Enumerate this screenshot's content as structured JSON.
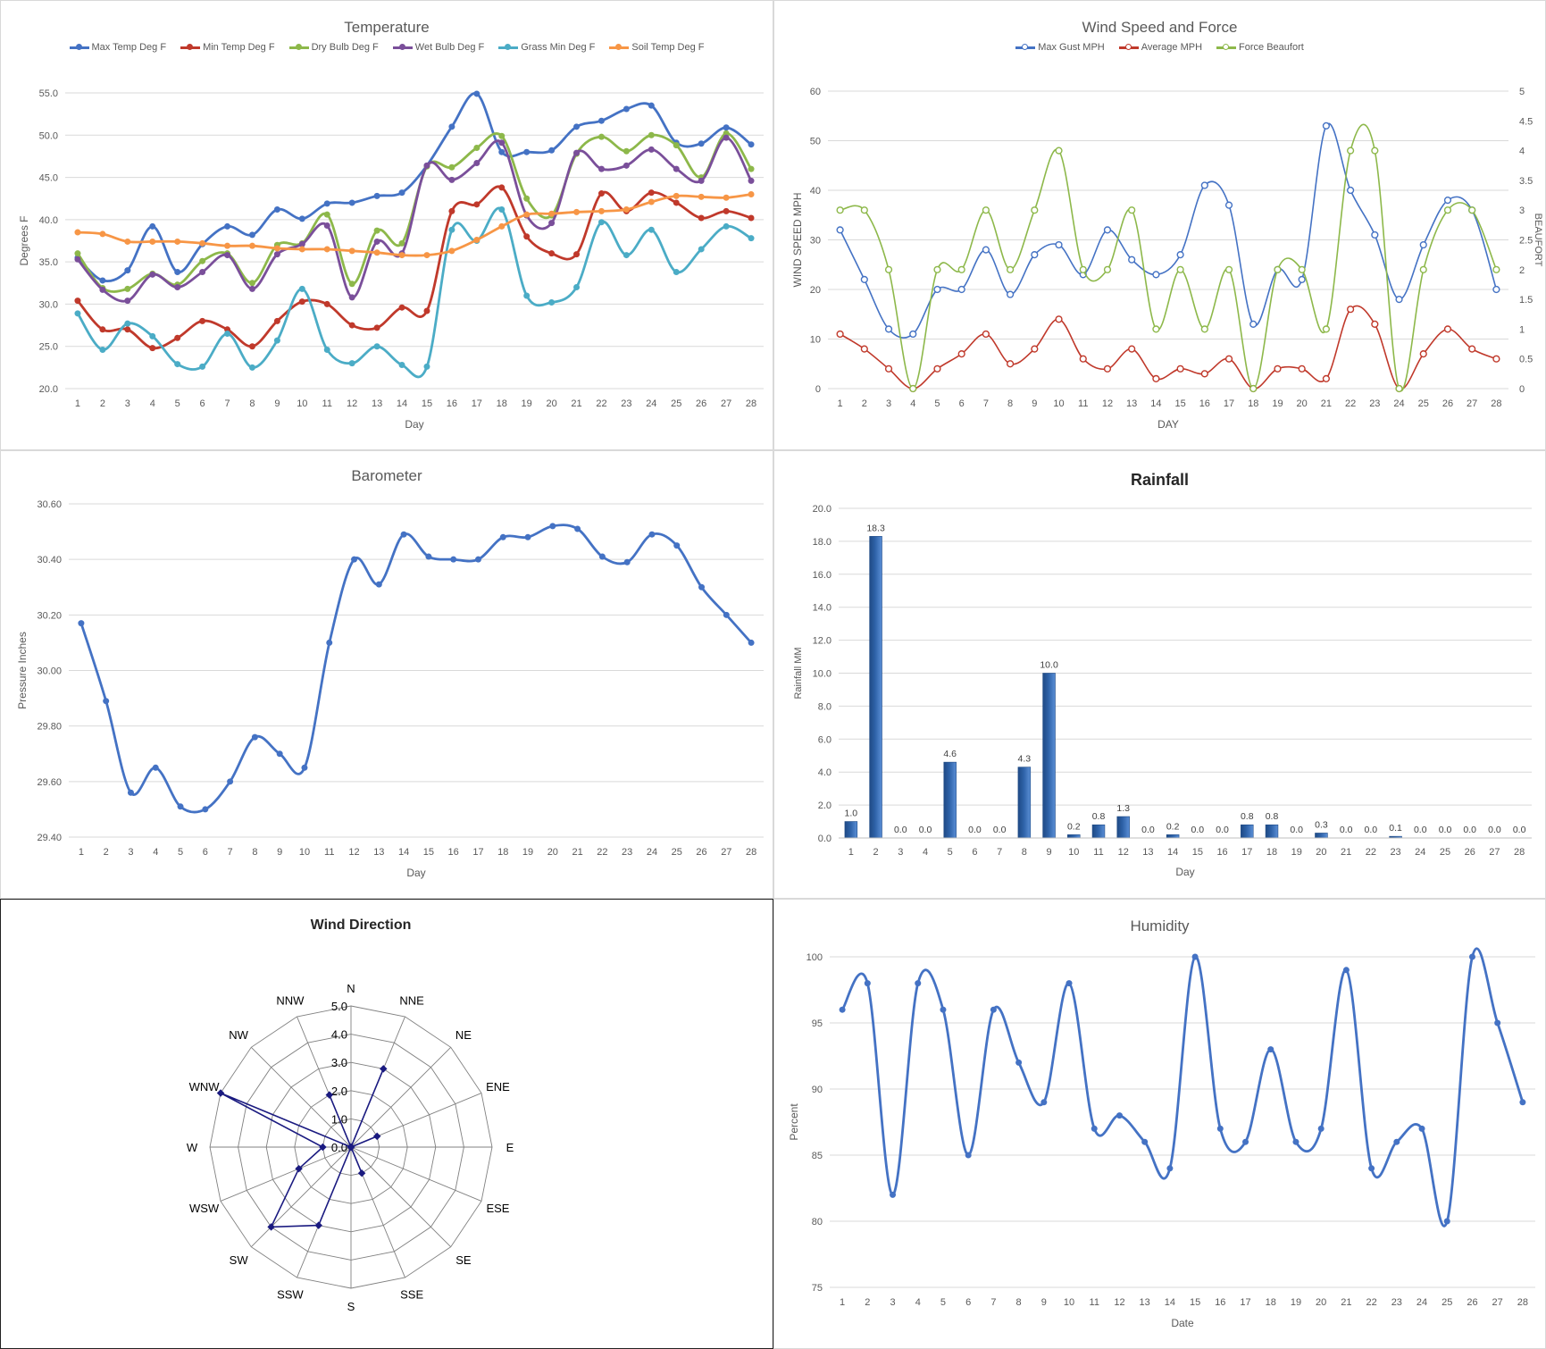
{
  "panels": {
    "temperature": {
      "title": "Temperature"
    },
    "wind": {
      "title": "Wind Speed and Force"
    },
    "barometer": {
      "title": "Barometer"
    },
    "rainfall": {
      "title": "Rainfall"
    },
    "direction": {
      "title": "Wind Direction"
    },
    "humidity": {
      "title": "Humidity"
    }
  },
  "chart_data": [
    {
      "id": "temperature",
      "type": "line",
      "title": "Temperature",
      "xlabel": "Day",
      "ylabel": "Degrees F",
      "ylim": [
        20,
        55
      ],
      "yticks": [
        "20.0",
        "25.0",
        "30.0",
        "35.0",
        "40.0",
        "45.0",
        "50.0",
        "55.0"
      ],
      "x": [
        1,
        2,
        3,
        4,
        5,
        6,
        7,
        8,
        9,
        10,
        11,
        12,
        13,
        14,
        15,
        16,
        17,
        18,
        19,
        20,
        21,
        22,
        23,
        24,
        25,
        26,
        27,
        28
      ],
      "legend_position": "top",
      "grid": true,
      "series": [
        {
          "name": "Max Temp Deg F",
          "color": "#4472c4",
          "values": [
            35.5,
            32.8,
            34,
            39.2,
            33.8,
            37.1,
            39.2,
            38.2,
            41.2,
            40.1,
            41.9,
            42,
            42.8,
            43.2,
            46.4,
            51,
            54.9,
            48,
            48,
            48.2,
            51,
            51.7,
            53.1,
            53.5,
            49.1,
            49,
            50.9,
            48.9
          ]
        },
        {
          "name": "Min Temp Deg F",
          "color": "#c0392b",
          "values": [
            30.4,
            27,
            27,
            24.8,
            26,
            28,
            27,
            25,
            28,
            30.3,
            30,
            27.5,
            27.2,
            29.6,
            29.2,
            41,
            41.8,
            43.8,
            38,
            36,
            35.9,
            43.1,
            41,
            43.2,
            42,
            40.2,
            41,
            40.2
          ]
        },
        {
          "name": "Dry Bulb Deg F",
          "color": "#8db84a",
          "values": [
            36,
            31.9,
            31.8,
            33.6,
            32.3,
            35.1,
            36,
            32.5,
            37,
            37.2,
            40.6,
            32.4,
            38.7,
            37.2,
            46.3,
            46.2,
            48.5,
            49.9,
            42.5,
            40.5,
            47.8,
            49.8,
            48.1,
            50,
            48.8,
            45,
            50.2,
            46
          ]
        },
        {
          "name": "Wet Bulb Deg F",
          "color": "#7a4f9a",
          "values": [
            35.3,
            31.7,
            30.4,
            33.5,
            32,
            33.8,
            35.8,
            31.8,
            35.9,
            37.1,
            39.3,
            30.8,
            37.4,
            36,
            46.4,
            44.7,
            46.7,
            49.1,
            40.5,
            39.6,
            47.9,
            46,
            46.4,
            48.3,
            46,
            44.6,
            49.7,
            44.6
          ]
        },
        {
          "name": "Grass Min Deg F",
          "color": "#4bacc6",
          "values": [
            28.9,
            24.6,
            27.7,
            26.2,
            22.9,
            22.6,
            26.5,
            22.5,
            25.7,
            31.8,
            24.6,
            23,
            25,
            22.8,
            22.6,
            38.8,
            37.5,
            41.2,
            31,
            30.2,
            32,
            39.7,
            35.8,
            38.8,
            33.8,
            36.5,
            39.2,
            37.8
          ]
        },
        {
          "name": "Soil Temp Deg F",
          "color": "#f79646",
          "values": [
            38.5,
            38.3,
            37.4,
            37.4,
            37.4,
            37.2,
            36.9,
            36.9,
            36.6,
            36.5,
            36.5,
            36.3,
            36.1,
            35.8,
            35.8,
            36.3,
            37.6,
            39.2,
            40.6,
            40.7,
            40.9,
            41,
            41.2,
            42.1,
            42.8,
            42.7,
            42.6,
            43
          ]
        }
      ]
    },
    {
      "id": "wind",
      "type": "line",
      "title": "Wind Speed and Force",
      "xlabel": "DAY",
      "ylabel": "WIND SPEED MPH",
      "y2label": "BEAUFORT",
      "ylim": [
        0,
        60
      ],
      "y2lim": [
        0,
        5
      ],
      "yticks": [
        "0",
        "10",
        "20",
        "30",
        "40",
        "50",
        "60"
      ],
      "y2ticks": [
        "0",
        "0.5",
        "1",
        "1.5",
        "2",
        "2.5",
        "3",
        "3.5",
        "4",
        "4.5",
        "5"
      ],
      "x": [
        1,
        2,
        3,
        4,
        5,
        6,
        7,
        8,
        9,
        10,
        11,
        12,
        13,
        14,
        15,
        16,
        17,
        18,
        19,
        20,
        21,
        22,
        23,
        24,
        25,
        26,
        27,
        28
      ],
      "legend_position": "top",
      "grid": true,
      "series": [
        {
          "name": "Max Gust MPH",
          "color": "#4472c4",
          "axis": "left",
          "values": [
            32,
            22,
            12,
            11,
            20,
            20,
            28,
            19,
            27,
            29,
            23,
            32,
            26,
            23,
            27,
            41,
            37,
            13,
            24,
            22,
            53,
            40,
            31,
            18,
            29,
            38,
            36,
            20
          ]
        },
        {
          "name": "Average MPH",
          "color": "#c0392b",
          "axis": "left",
          "values": [
            11,
            8,
            4,
            0,
            4,
            7,
            11,
            5,
            8,
            14,
            6,
            4,
            8,
            2,
            4,
            3,
            6,
            0,
            4,
            4,
            2,
            16,
            13,
            0,
            7,
            12,
            8,
            6
          ]
        },
        {
          "name": "Force Beaufort",
          "color": "#8db84a",
          "axis": "right",
          "values": [
            3,
            3,
            2,
            0,
            2,
            2,
            3,
            2,
            3,
            4,
            2,
            2,
            3,
            1,
            2,
            1,
            2,
            0,
            2,
            2,
            1,
            4,
            4,
            0,
            2,
            3,
            3,
            2
          ]
        }
      ]
    },
    {
      "id": "barometer",
      "type": "line",
      "title": "Barometer",
      "xlabel": "Day",
      "ylabel": "Pressure Inches",
      "ylim": [
        29.4,
        30.6
      ],
      "yticks": [
        "29.40",
        "29.60",
        "29.80",
        "30.00",
        "30.20",
        "30.40",
        "30.60"
      ],
      "x": [
        1,
        2,
        3,
        4,
        5,
        6,
        7,
        8,
        9,
        10,
        11,
        12,
        13,
        14,
        15,
        16,
        17,
        18,
        19,
        20,
        21,
        22,
        23,
        24,
        25,
        26,
        27,
        28
      ],
      "grid": true,
      "series": [
        {
          "name": "Pressure",
          "color": "#4472c4",
          "values": [
            30.17,
            29.89,
            29.56,
            29.65,
            29.51,
            29.5,
            29.6,
            29.76,
            29.7,
            29.65,
            30.1,
            30.4,
            30.31,
            30.49,
            30.41,
            30.4,
            30.4,
            30.48,
            30.48,
            30.52,
            30.51,
            30.41,
            30.39,
            30.49,
            30.45,
            30.3,
            30.2,
            30.1
          ]
        }
      ]
    },
    {
      "id": "rainfall",
      "type": "bar",
      "title": "Rainfall",
      "xlabel": "Day",
      "ylabel": "Rainfall MM",
      "ylim": [
        0,
        20
      ],
      "yticks": [
        "0.0",
        "2.0",
        "4.0",
        "6.0",
        "8.0",
        "10.0",
        "12.0",
        "14.0",
        "16.0",
        "18.0",
        "20.0"
      ],
      "categories": [
        "1",
        "2",
        "3",
        "4",
        "5",
        "6",
        "7",
        "8",
        "9",
        "10",
        "11",
        "12",
        "13",
        "14",
        "15",
        "16",
        "17",
        "18",
        "19",
        "20",
        "21",
        "22",
        "23",
        "24",
        "25",
        "26",
        "27",
        "28"
      ],
      "values": [
        1.0,
        18.3,
        0.0,
        0.0,
        4.6,
        0.0,
        0.0,
        4.3,
        10.0,
        0.2,
        0.8,
        1.3,
        0.0,
        0.2,
        0.0,
        0.0,
        0.8,
        0.8,
        0.0,
        0.3,
        0.0,
        0.0,
        0.1,
        0.0,
        0.0,
        0.0,
        0.0,
        0.0
      ],
      "data_labels": [
        "1.0",
        "18.3",
        "0.0",
        "0.0",
        "4.6",
        "0.0",
        "0.0",
        "4.3",
        "10.0",
        "0.2",
        "0.8",
        "1.3",
        "0.0",
        "0.2",
        "0.0",
        "0.0",
        "0.8",
        "0.8",
        "0.0",
        "0.3",
        "0.0",
        "0.0",
        "0.1",
        "0.0",
        "0.0",
        "0.0",
        "0.0",
        "0.0"
      ],
      "color": "#2e62a8",
      "grid": true
    },
    {
      "id": "direction",
      "type": "radar",
      "title": "Wind Direction",
      "categories": [
        "N",
        "NNE",
        "NE",
        "ENE",
        "E",
        "ESE",
        "SE",
        "SSE",
        "S",
        "SSW",
        "SW",
        "WSW",
        "W",
        "WNW",
        "NW",
        "NNW"
      ],
      "values": [
        0,
        3,
        0,
        1,
        0,
        0,
        0,
        1,
        0,
        3,
        4,
        2,
        1,
        5,
        0,
        2
      ],
      "rlim": [
        0,
        5
      ],
      "rticks": [
        "0.0",
        "1.0",
        "2.0",
        "3.0",
        "4.0",
        "5.0"
      ],
      "color": "#1a1a80",
      "grid": true
    },
    {
      "id": "humidity",
      "type": "line",
      "title": "Humidity",
      "xlabel": "Date",
      "ylabel": "Percent",
      "ylim": [
        75,
        100
      ],
      "yticks": [
        "75",
        "80",
        "85",
        "90",
        "95",
        "100"
      ],
      "x": [
        1,
        2,
        3,
        4,
        5,
        6,
        7,
        8,
        9,
        10,
        11,
        12,
        13,
        14,
        15,
        16,
        17,
        18,
        19,
        20,
        21,
        22,
        23,
        24,
        25,
        26,
        27,
        28
      ],
      "grid": true,
      "series": [
        {
          "name": "Humidity",
          "color": "#4472c4",
          "values": [
            96,
            98,
            82,
            98,
            96,
            85,
            96,
            92,
            89,
            98,
            87,
            88,
            86,
            84,
            100,
            87,
            86,
            93,
            86,
            87,
            99,
            84,
            86,
            87,
            80,
            100,
            95,
            89
          ]
        }
      ]
    }
  ]
}
